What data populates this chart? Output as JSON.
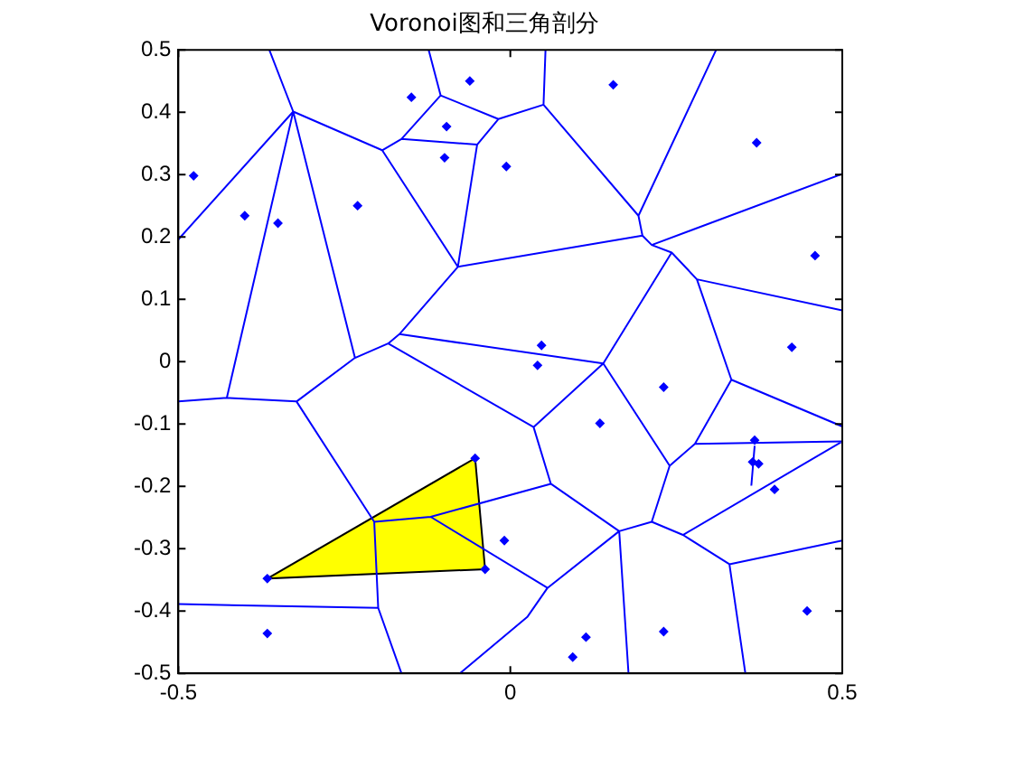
{
  "chart_data": {
    "type": "scatter",
    "title": "Voronoi图和三角剖分",
    "xlim": [
      -0.5,
      0.5
    ],
    "ylim": [
      -0.5,
      0.5
    ],
    "xticks": [
      -0.5,
      0,
      0.5
    ],
    "yticks": [
      -0.5,
      -0.4,
      -0.3,
      -0.2,
      -0.1,
      0,
      0.1,
      0.2,
      0.3,
      0.4,
      0.5
    ],
    "grid": false,
    "legend": false,
    "series": [
      {
        "type": "area",
        "color": "#ffff00",
        "x": [
          -0.053,
          -0.038,
          -0.366,
          -0.053
        ],
        "values": [
          -0.155,
          -0.333,
          -0.348,
          -0.155
        ]
      },
      {
        "type": "line",
        "color": "#0000ff",
        "marker": "none",
        "x": [
          -0.327,
          -0.363,
          null,
          -0.327,
          -0.5,
          null,
          -0.327,
          -0.427,
          -0.5,
          null,
          -0.427,
          -0.322,
          -0.234,
          -0.327,
          null,
          -0.234,
          -0.184,
          null,
          -0.327,
          -0.193,
          -0.164,
          -0.105,
          -0.123,
          null,
          -0.105,
          -0.018,
          0.05,
          0.053,
          null,
          -0.018,
          -0.05,
          -0.164,
          null,
          -0.05,
          -0.079,
          -0.193,
          null,
          -0.079,
          0.199,
          null,
          -0.079,
          -0.167,
          -0.184,
          0.035,
          0.14,
          -0.167,
          null,
          0.035,
          0.061,
          -0.12,
          -0.205,
          -0.322,
          null,
          -0.205,
          -0.199,
          -0.5,
          null,
          -0.199,
          -0.164,
          null,
          -0.12,
          0.056,
          0.026,
          -0.076,
          null,
          0.061,
          0.164,
          0.056,
          null,
          0.164,
          0.178,
          null,
          0.164,
          0.213,
          0.24,
          0.14,
          null,
          0.213,
          0.26,
          0.33,
          0.5,
          null,
          0.33,
          0.354,
          null,
          0.26,
          0.5,
          null,
          0.24,
          0.278,
          0.333,
          0.5,
          null,
          0.278,
          0.5,
          null,
          0.363,
          0.368,
          null,
          0.333,
          0.281,
          0.5,
          null,
          0.281,
          0.243,
          0.14,
          null,
          0.243,
          0.213,
          0.199,
          0.193,
          0.31,
          null,
          0.213,
          0.5,
          null,
          0.193,
          0.05
        ],
        "values": [
          0.401,
          0.5,
          null,
          0.401,
          0.196,
          null,
          0.401,
          -0.058,
          -0.064,
          null,
          -0.058,
          -0.064,
          0.006,
          0.401,
          null,
          0.006,
          0.029,
          null,
          0.401,
          0.339,
          0.357,
          0.427,
          0.5,
          null,
          0.427,
          0.389,
          0.412,
          0.5,
          null,
          0.389,
          0.348,
          0.357,
          null,
          0.348,
          0.152,
          0.339,
          null,
          0.152,
          0.202,
          null,
          0.152,
          0.044,
          0.029,
          -0.105,
          -0.003,
          0.044,
          null,
          -0.105,
          -0.196,
          -0.249,
          -0.257,
          -0.064,
          null,
          -0.257,
          -0.395,
          -0.389,
          null,
          -0.395,
          -0.5,
          null,
          -0.249,
          -0.363,
          -0.409,
          -0.5,
          null,
          -0.196,
          -0.272,
          -0.363,
          null,
          -0.272,
          -0.5,
          null,
          -0.272,
          -0.257,
          -0.167,
          -0.003,
          null,
          -0.257,
          -0.278,
          -0.325,
          -0.287,
          null,
          -0.325,
          -0.5,
          null,
          -0.278,
          -0.128,
          null,
          -0.167,
          -0.132,
          -0.029,
          -0.104,
          null,
          -0.132,
          -0.128,
          null,
          -0.199,
          -0.135,
          null,
          -0.029,
          0.132,
          0.082,
          null,
          0.132,
          0.175,
          -0.003,
          null,
          0.175,
          0.187,
          0.202,
          0.234,
          0.5,
          null,
          0.187,
          0.301,
          null,
          0.234,
          0.412
        ]
      },
      {
        "type": "scatter",
        "color": "#0000ff",
        "marker": "diamond",
        "x": [
          -0.477,
          -0.4,
          -0.35,
          -0.23,
          -0.149,
          -0.061,
          -0.096,
          -0.099,
          -0.006,
          0.155,
          0.371,
          0.459,
          0.047,
          0.041,
          0.424,
          0.231,
          0.135,
          0.368,
          0.365,
          0.374,
          0.398,
          -0.009,
          0.447,
          0.231,
          0.114,
          0.094,
          -0.053,
          -0.038,
          -0.366,
          -0.366
        ],
        "values": [
          0.298,
          0.234,
          0.222,
          0.25,
          0.424,
          0.45,
          0.377,
          0.327,
          0.313,
          0.444,
          0.351,
          0.17,
          0.026,
          -0.006,
          0.023,
          -0.041,
          -0.099,
          -0.126,
          -0.161,
          -0.164,
          -0.205,
          -0.287,
          -0.4,
          -0.433,
          -0.442,
          -0.474,
          -0.155,
          -0.333,
          -0.348,
          -0.436
        ]
      }
    ]
  }
}
